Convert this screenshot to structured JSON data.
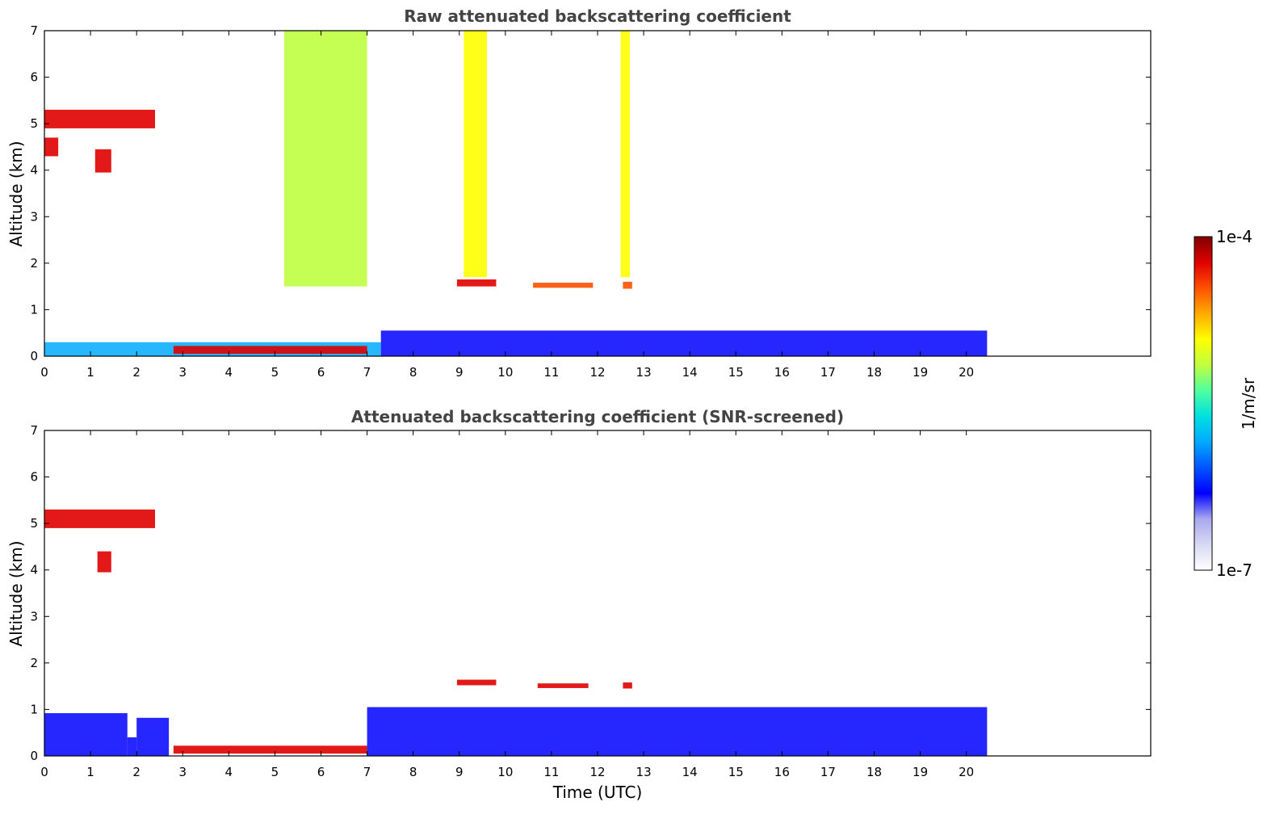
{
  "chart_data": [
    {
      "type": "heatmap",
      "title": "Raw attenuated backscattering coefficient",
      "xlabel": "",
      "ylabel": "Altitude (km)",
      "xlim": [
        0,
        24
      ],
      "ylim": [
        0,
        7
      ],
      "xticks": [
        "0",
        "1",
        "2",
        "3",
        "4",
        "5",
        "6",
        "7",
        "8",
        "9",
        "10",
        "11",
        "12",
        "13",
        "14",
        "15",
        "16",
        "17",
        "18",
        "19",
        "20"
      ],
      "yticks": [
        "0",
        "1",
        "2",
        "3",
        "4",
        "5",
        "6",
        "7"
      ],
      "data_time_range": [
        0,
        20.45
      ],
      "scale": "log",
      "features": [
        {
          "t": [
            0.0,
            7.3
          ],
          "alt": [
            0.0,
            0.3
          ],
          "level": 0.42
        },
        {
          "t": [
            7.3,
            20.45
          ],
          "alt": [
            0.0,
            0.55
          ],
          "level": 0.3
        },
        {
          "t": [
            2.8,
            7.0
          ],
          "alt": [
            0.05,
            0.22
          ],
          "level": 0.97
        },
        {
          "t": [
            0.0,
            2.4
          ],
          "alt": [
            4.9,
            5.3
          ],
          "level": 0.95
        },
        {
          "t": [
            0.0,
            0.3
          ],
          "alt": [
            4.3,
            4.7
          ],
          "level": 0.93
        },
        {
          "t": [
            1.1,
            1.45
          ],
          "alt": [
            3.95,
            4.45
          ],
          "level": 0.95
        },
        {
          "t": [
            8.95,
            9.8
          ],
          "alt": [
            1.5,
            1.65
          ],
          "level": 0.96
        },
        {
          "t": [
            10.6,
            11.9
          ],
          "alt": [
            1.47,
            1.58
          ],
          "level": 0.9
        },
        {
          "t": [
            12.55,
            12.75
          ],
          "alt": [
            1.45,
            1.6
          ],
          "level": 0.92
        },
        {
          "t": [
            9.1,
            9.6
          ],
          "alt": [
            1.7,
            7.0
          ],
          "level": 0.72
        },
        {
          "t": [
            5.2,
            7.0
          ],
          "alt": [
            1.5,
            7.0
          ],
          "level": 0.68
        },
        {
          "t": [
            12.5,
            12.7
          ],
          "alt": [
            1.7,
            7.0
          ],
          "level": 0.7
        }
      ]
    },
    {
      "type": "heatmap",
      "title": "Attenuated backscattering coefficient (SNR-screened)",
      "xlabel": "Time (UTC)",
      "ylabel": "Altitude (km)",
      "xlim": [
        0,
        24
      ],
      "ylim": [
        0,
        7
      ],
      "xticks": [
        "0",
        "1",
        "2",
        "3",
        "4",
        "5",
        "6",
        "7",
        "8",
        "9",
        "10",
        "11",
        "12",
        "13",
        "14",
        "15",
        "16",
        "17",
        "18",
        "19",
        "20"
      ],
      "yticks": [
        "0",
        "1",
        "2",
        "3",
        "4",
        "5",
        "6",
        "7"
      ],
      "data_time_range": [
        0,
        20.45
      ],
      "scale": "log",
      "features": [
        {
          "t": [
            0.0,
            1.8
          ],
          "alt": [
            0.0,
            0.92
          ],
          "level": 0.3
        },
        {
          "t": [
            1.8,
            2.0
          ],
          "alt": [
            0.0,
            0.4
          ],
          "level": 0.3
        },
        {
          "t": [
            2.0,
            2.7
          ],
          "alt": [
            0.0,
            0.82
          ],
          "level": 0.3
        },
        {
          "t": [
            2.8,
            7.0
          ],
          "alt": [
            0.05,
            0.22
          ],
          "level": 0.98
        },
        {
          "t": [
            7.0,
            20.45
          ],
          "alt": [
            0.0,
            1.05
          ],
          "level": 0.3
        },
        {
          "t": [
            0.0,
            2.4
          ],
          "alt": [
            4.9,
            5.3
          ],
          "level": 0.98
        },
        {
          "t": [
            1.15,
            1.45
          ],
          "alt": [
            3.95,
            4.4
          ],
          "level": 0.98
        },
        {
          "t": [
            8.95,
            9.8
          ],
          "alt": [
            1.52,
            1.64
          ],
          "level": 0.98
        },
        {
          "t": [
            10.7,
            11.8
          ],
          "alt": [
            1.46,
            1.56
          ],
          "level": 0.98
        },
        {
          "t": [
            12.55,
            12.75
          ],
          "alt": [
            1.45,
            1.58
          ],
          "level": 0.98
        }
      ]
    }
  ],
  "colorbar": {
    "label": "1/m/sr",
    "max_label": "1e-4",
    "min_label": "1e-7",
    "colors": [
      "#ffffff",
      "#d8d8f4",
      "#a8a8ee",
      "#0000ff",
      "#0055ff",
      "#00aaff",
      "#00e0e0",
      "#50ffa0",
      "#c0ff40",
      "#ffff00",
      "#ffaa00",
      "#ff5000",
      "#e00000",
      "#800000"
    ]
  }
}
